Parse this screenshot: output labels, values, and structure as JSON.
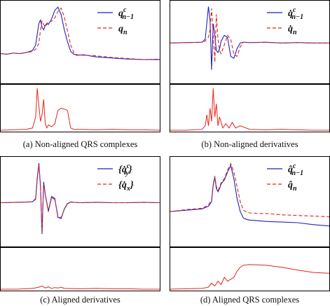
{
  "chart_data": [
    {
      "type": "line",
      "caption": "(a) Non-aligned QRS complexes",
      "series": [
        {
          "name": "q^c_{n-1}",
          "color": "#1f1fbf",
          "style": "solid"
        },
        {
          "name": "q_n",
          "color": "#e3241c",
          "style": "dashed"
        }
      ],
      "legend": [
        {
          "symbol": "q",
          "sup": "c",
          "sub": "n−1",
          "color": "#1f1fbf",
          "dashed": false
        },
        {
          "symbol": "q",
          "sup": "",
          "sub": "n",
          "color": "#e3241c",
          "dashed": true
        }
      ],
      "legend_position": "top-right",
      "top": {
        "x": [
          0,
          0.04,
          0.08,
          0.12,
          0.16,
          0.2,
          0.22,
          0.24,
          0.25,
          0.26,
          0.27,
          0.28,
          0.29,
          0.3,
          0.32,
          0.34,
          0.36,
          0.38,
          0.4,
          0.42,
          0.44,
          0.46,
          0.48,
          0.52,
          0.6,
          0.7,
          0.8,
          0.9,
          1.0
        ],
        "a": [
          0.06,
          0.05,
          0.07,
          0.06,
          0.08,
          0.12,
          0.22,
          0.62,
          0.68,
          0.55,
          0.5,
          0.58,
          0.62,
          0.6,
          0.7,
          0.86,
          0.92,
          0.78,
          0.5,
          0.28,
          0.1,
          0.05,
          0.03,
          0.04,
          0.0,
          -0.02,
          -0.04,
          -0.05,
          -0.05
        ],
        "b": [
          0.06,
          0.05,
          0.07,
          0.06,
          0.08,
          0.1,
          0.14,
          0.25,
          0.5,
          0.66,
          0.6,
          0.56,
          0.6,
          0.65,
          0.66,
          0.72,
          0.84,
          0.9,
          0.74,
          0.48,
          0.22,
          0.08,
          0.04,
          0.03,
          0.02,
          -0.01,
          -0.03,
          -0.05,
          -0.04
        ]
      },
      "bottom": {
        "x": [
          0,
          0.08,
          0.16,
          0.2,
          0.22,
          0.23,
          0.24,
          0.25,
          0.26,
          0.27,
          0.28,
          0.29,
          0.3,
          0.32,
          0.34,
          0.36,
          0.38,
          0.4,
          0.42,
          0.44,
          0.46,
          0.5,
          0.6,
          0.7,
          0.8,
          0.9,
          1.0
        ],
        "e": [
          0.0,
          0.01,
          0.02,
          0.05,
          0.3,
          0.95,
          0.55,
          0.2,
          0.35,
          0.7,
          0.15,
          0.05,
          0.12,
          0.08,
          0.15,
          0.45,
          0.5,
          0.48,
          0.45,
          0.05,
          0.02,
          0.02,
          0.01,
          0.02,
          0.01,
          0.01,
          0.0
        ]
      }
    },
    {
      "type": "line",
      "caption": "(b) Non-aligned derivatives",
      "series": [
        {
          "name": "q̇^c_{n-1}",
          "color": "#1f1fbf",
          "style": "solid"
        },
        {
          "name": "q̇_n",
          "color": "#e3241c",
          "style": "dashed"
        }
      ],
      "legend": [
        {
          "symbol": "q̇",
          "sup": "c",
          "sub": "n−1",
          "color": "#1f1fbf",
          "dashed": false
        },
        {
          "symbol": "q̇",
          "sup": "",
          "sub": "n",
          "color": "#e3241c",
          "dashed": true
        }
      ],
      "legend_position": "top-right",
      "top": {
        "x": [
          0,
          0.1,
          0.2,
          0.22,
          0.24,
          0.25,
          0.26,
          0.27,
          0.28,
          0.29,
          0.3,
          0.31,
          0.32,
          0.34,
          0.36,
          0.38,
          0.4,
          0.42,
          0.44,
          0.46,
          0.5,
          0.6,
          0.7,
          0.8,
          0.9,
          1.0
        ],
        "a": [
          0.0,
          0.01,
          0.02,
          0.1,
          0.95,
          0.6,
          -0.7,
          0.5,
          0.2,
          -0.2,
          -0.25,
          -0.15,
          0.05,
          0.2,
          0.15,
          -0.35,
          -0.4,
          -0.15,
          0.0,
          0.02,
          0.01,
          0.02,
          0.0,
          0.01,
          0.0,
          0.0
        ],
        "b": [
          0.0,
          0.01,
          0.02,
          0.05,
          0.15,
          0.35,
          0.9,
          0.2,
          -0.5,
          0.75,
          0.1,
          -0.2,
          -0.28,
          -0.05,
          0.2,
          0.1,
          -0.3,
          -0.35,
          -0.1,
          0.02,
          0.01,
          0.02,
          0.0,
          0.01,
          0.0,
          0.0
        ]
      },
      "bottom": {
        "x": [
          0,
          0.1,
          0.2,
          0.22,
          0.23,
          0.24,
          0.25,
          0.26,
          0.27,
          0.28,
          0.29,
          0.3,
          0.31,
          0.33,
          0.35,
          0.37,
          0.39,
          0.41,
          0.44,
          0.5,
          0.6,
          0.7,
          0.8,
          0.9,
          1.0
        ],
        "e": [
          0.0,
          0.0,
          0.02,
          0.1,
          0.35,
          0.1,
          0.5,
          0.2,
          0.95,
          0.3,
          0.6,
          0.1,
          0.3,
          0.05,
          0.15,
          0.05,
          0.18,
          0.05,
          0.1,
          0.02,
          0.01,
          0.02,
          0.01,
          0.0,
          0.0
        ]
      }
    },
    {
      "type": "line",
      "caption": "(c) Aligned derivatives",
      "series": [
        {
          "name": "{q̇^c_{y_k}}",
          "color": "#1f1fbf",
          "style": "solid"
        },
        {
          "name": "{q̇_{x_k}}",
          "color": "#e3241c",
          "style": "dashed"
        }
      ],
      "legend": [
        {
          "symbol": "{q̇",
          "sup": "c",
          "sub": "y",
          "tail": "}",
          "color": "#1f1fbf",
          "dashed": false
        },
        {
          "symbol": "{q̇",
          "sup": "",
          "sub": "x",
          "tail": "}",
          "color": "#e3241c",
          "dashed": true
        }
      ],
      "legend_position": "top-right",
      "top": {
        "x": [
          0,
          0.1,
          0.2,
          0.22,
          0.23,
          0.24,
          0.25,
          0.26,
          0.27,
          0.28,
          0.3,
          0.32,
          0.34,
          0.36,
          0.38,
          0.4,
          0.42,
          0.44,
          0.46,
          0.5,
          0.6,
          0.7,
          0.8,
          0.9,
          1.0
        ],
        "a": [
          0.0,
          0.01,
          0.02,
          0.1,
          0.6,
          0.95,
          0.4,
          -0.75,
          0.5,
          0.2,
          -0.2,
          0.15,
          0.1,
          -0.35,
          -0.38,
          -0.15,
          -0.02,
          0.02,
          0.01,
          0.0,
          0.01,
          0.0,
          0.0,
          0.01,
          0.0
        ],
        "b": [
          0.0,
          0.01,
          0.02,
          0.08,
          0.55,
          0.92,
          0.35,
          -0.7,
          0.45,
          0.18,
          -0.22,
          0.12,
          0.08,
          -0.32,
          -0.36,
          -0.16,
          -0.03,
          0.02,
          0.01,
          0.0,
          0.01,
          0.0,
          0.0,
          0.01,
          0.0
        ]
      },
      "bottom": {
        "x": [
          0,
          0.1,
          0.2,
          0.24,
          0.26,
          0.28,
          0.3,
          0.32,
          0.34,
          0.36,
          0.38,
          0.4,
          0.5,
          0.6,
          0.7,
          0.8,
          0.9,
          1.0
        ],
        "e": [
          0.0,
          0.0,
          0.02,
          0.05,
          0.08,
          0.03,
          0.06,
          0.02,
          0.04,
          0.03,
          0.05,
          0.02,
          0.01,
          0.02,
          0.01,
          0.01,
          0.0,
          0.0
        ]
      }
    },
    {
      "type": "line",
      "caption": "(d) Aligned QRS complexes",
      "series": [
        {
          "name": "q̂^c_{n-1}",
          "color": "#1f1fbf",
          "style": "solid"
        },
        {
          "name": "q̂_n",
          "color": "#e3241c",
          "style": "dashed"
        }
      ],
      "legend": [
        {
          "symbol": "q̂",
          "sup": "c",
          "sub": "n−1",
          "color": "#1f1fbf",
          "dashed": false
        },
        {
          "symbol": "q̂",
          "sup": "",
          "sub": "n",
          "color": "#e3241c",
          "dashed": true
        }
      ],
      "legend_position": "top-right",
      "top": {
        "x": [
          0,
          0.1,
          0.2,
          0.24,
          0.26,
          0.27,
          0.28,
          0.29,
          0.3,
          0.31,
          0.32,
          0.34,
          0.36,
          0.38,
          0.4,
          0.42,
          0.44,
          0.46,
          0.48,
          0.5,
          0.55,
          0.6,
          0.7,
          0.8,
          0.9,
          1.0
        ],
        "a": [
          0.2,
          0.22,
          0.24,
          0.28,
          0.35,
          0.6,
          0.72,
          0.55,
          0.5,
          0.55,
          0.62,
          0.68,
          0.8,
          0.9,
          0.7,
          0.4,
          0.2,
          0.1,
          0.08,
          0.07,
          0.06,
          0.05,
          0.04,
          0.03,
          0.0,
          -0.02
        ],
        "b": [
          0.2,
          0.23,
          0.25,
          0.3,
          0.38,
          0.62,
          0.74,
          0.58,
          0.52,
          0.57,
          0.64,
          0.7,
          0.83,
          0.93,
          0.8,
          0.58,
          0.35,
          0.22,
          0.19,
          0.18,
          0.17,
          0.17,
          0.15,
          0.14,
          0.13,
          0.12
        ]
      },
      "bottom": {
        "x": [
          0,
          0.1,
          0.2,
          0.24,
          0.26,
          0.28,
          0.3,
          0.32,
          0.34,
          0.36,
          0.38,
          0.4,
          0.42,
          0.44,
          0.46,
          0.5,
          0.6,
          0.7,
          0.8,
          0.9,
          1.0
        ],
        "e": [
          0.0,
          0.01,
          0.02,
          0.05,
          0.15,
          0.08,
          0.2,
          0.12,
          0.3,
          0.2,
          0.25,
          0.3,
          0.45,
          0.55,
          0.6,
          0.62,
          0.6,
          0.55,
          0.48,
          0.42,
          0.4
        ]
      }
    }
  ]
}
